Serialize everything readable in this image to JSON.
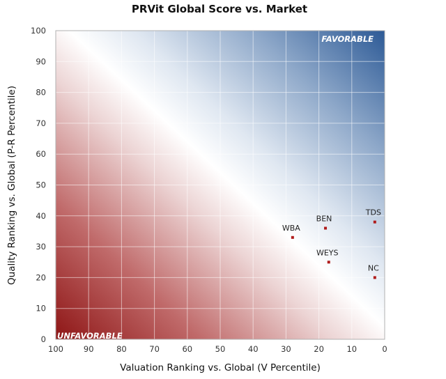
{
  "chart_data": {
    "type": "scatter",
    "title": "PRVit Global Score vs. Market",
    "xlabel": "Valuation Ranking vs. Global (V Percentile)",
    "ylabel": "Quality Ranking vs. Global (P-R Percentile)",
    "xlim": [
      100,
      0
    ],
    "ylim": [
      0,
      100
    ],
    "x_reversed": true,
    "x_ticks": [
      100,
      90,
      80,
      70,
      60,
      50,
      40,
      30,
      20,
      10,
      0
    ],
    "y_ticks": [
      0,
      10,
      20,
      30,
      40,
      50,
      60,
      70,
      80,
      90,
      100
    ],
    "grid": true,
    "zones": {
      "top_right": "FAVORABLE",
      "bottom_left": "UNFAVORABLE"
    },
    "colors": {
      "favorable": "#2d5a96",
      "unfavorable": "#9a1c1c",
      "point": "#b01c1c"
    },
    "points": [
      {
        "label": "TDS",
        "x": 3,
        "y": 38
      },
      {
        "label": "BEN",
        "x": 18,
        "y": 36
      },
      {
        "label": "WBA",
        "x": 28,
        "y": 33
      },
      {
        "label": "WEYS",
        "x": 17,
        "y": 25
      },
      {
        "label": "NC",
        "x": 3,
        "y": 20
      }
    ]
  }
}
